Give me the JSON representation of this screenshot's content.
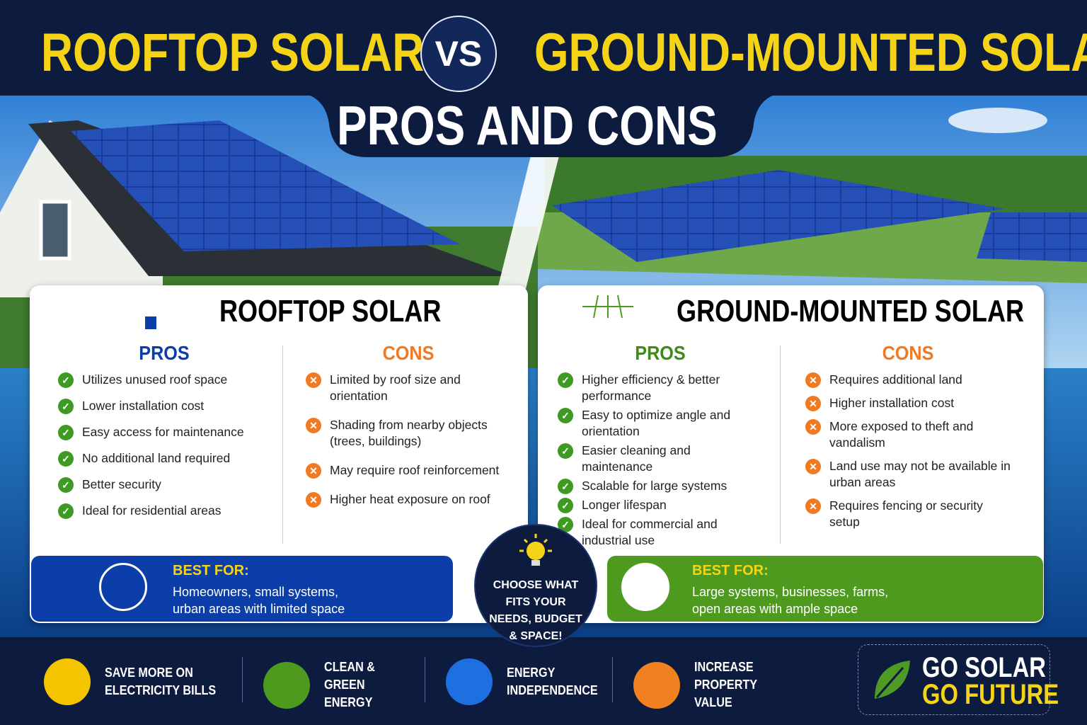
{
  "header": {
    "title_left": "ROOFTOP SOLAR",
    "vs": "VS",
    "title_right": "GROUND-MOUNTED SOLAR",
    "subtitle": "PROS AND CONS"
  },
  "panels": [
    {
      "title": "ROOFTOP SOLAR",
      "pros_heading": "PROS",
      "pros": [
        "Utilizes unused roof space",
        "Lower installation cost",
        "Easy access for maintenance",
        "No additional land required",
        "Better security",
        "Ideal for residential areas"
      ],
      "cons_heading": "CONS",
      "cons": [
        "Limited by roof size and orientation",
        "Shading from nearby objects (trees, buildings)",
        "May require roof reinforcement",
        "Higher heat exposure on roof"
      ],
      "best_for_label": "BEST FOR:",
      "best_for": "Homeowners, small systems, urban areas with limited space"
    },
    {
      "title": "GROUND-MOUNTED SOLAR",
      "pros_heading": "PROS",
      "pros": [
        "Higher efficiency & better performance",
        "Easy to optimize angle and orientation",
        "Easier cleaning and maintenance",
        "Scalable for large systems",
        "Longer lifespan",
        "Ideal for commercial and industrial use"
      ],
      "cons_heading": "CONS",
      "cons": [
        "Requires additional land",
        "Higher installation cost",
        "More exposed to theft and vandalism",
        "Land use may not be available in urban areas",
        "Requires fencing or security setup"
      ],
      "best_for_label": "BEST FOR:",
      "best_for": "Large systems, businesses, farms, open areas with ample space"
    }
  ],
  "badge": "CHOOSE WHAT FITS YOUR NEEDS, BUDGET & SPACE!",
  "footer": {
    "benefits": [
      "SAVE MORE ON ELECTRICITY BILLS",
      "CLEAN & GREEN ENERGY",
      "ENERGY INDEPENDENCE",
      "INCREASE PROPERTY VALUE"
    ],
    "slogan": [
      "GO SOLAR",
      "GO FUTURE"
    ]
  }
}
